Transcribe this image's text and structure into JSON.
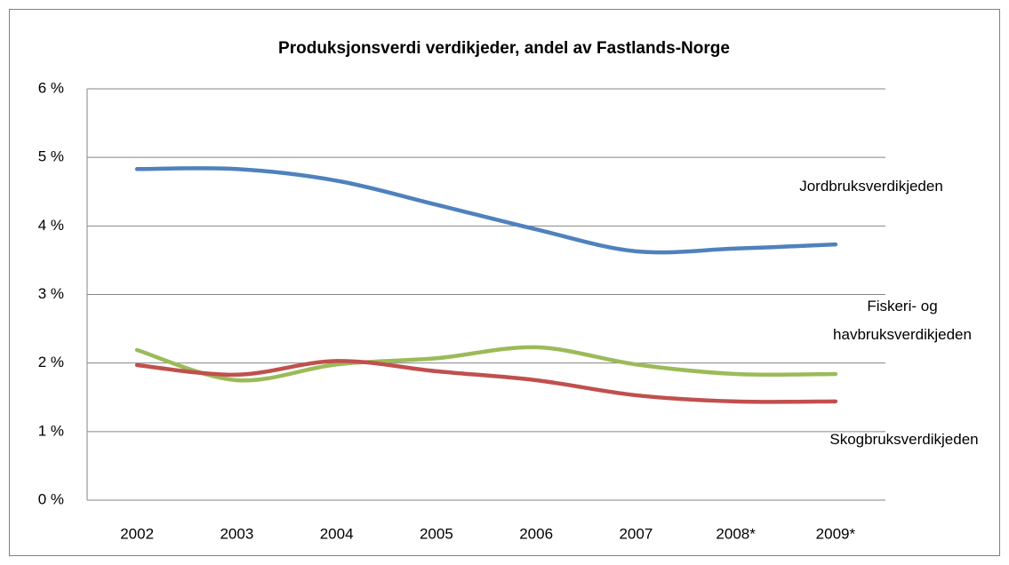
{
  "chart_data": {
    "type": "line",
    "title": "Produksjonsverdi verdikjeder, andel av Fastlands-Norge",
    "categories": [
      "2002",
      "2003",
      "2004",
      "2005",
      "2006",
      "2007",
      "2008*",
      "2009*"
    ],
    "series": [
      {
        "name": "Jordbruksverdikjeden",
        "color": "#4f81bd",
        "values": [
          4.83,
          4.83,
          4.66,
          4.31,
          3.95,
          3.63,
          3.67,
          3.73
        ]
      },
      {
        "name": "Fiskeri- og havbruksverdikjeden",
        "color": "#9bbb59",
        "values": [
          2.19,
          1.75,
          1.98,
          2.07,
          2.23,
          1.98,
          1.84,
          1.84
        ]
      },
      {
        "name": "Skogbruksverdikjeden",
        "color": "#c0504d",
        "values": [
          1.97,
          1.83,
          2.03,
          1.88,
          1.75,
          1.53,
          1.44,
          1.44
        ]
      }
    ],
    "ylim": [
      0,
      6
    ],
    "yticks": [
      {
        "value": 0,
        "label": "0 %"
      },
      {
        "value": 1,
        "label": "1 %"
      },
      {
        "value": 2,
        "label": "2 %"
      },
      {
        "value": 3,
        "label": "3 %"
      },
      {
        "value": 4,
        "label": "4 %"
      },
      {
        "value": 5,
        "label": "5 %"
      },
      {
        "value": 6,
        "label": "6 %"
      }
    ],
    "grid": true,
    "smooth": true
  }
}
